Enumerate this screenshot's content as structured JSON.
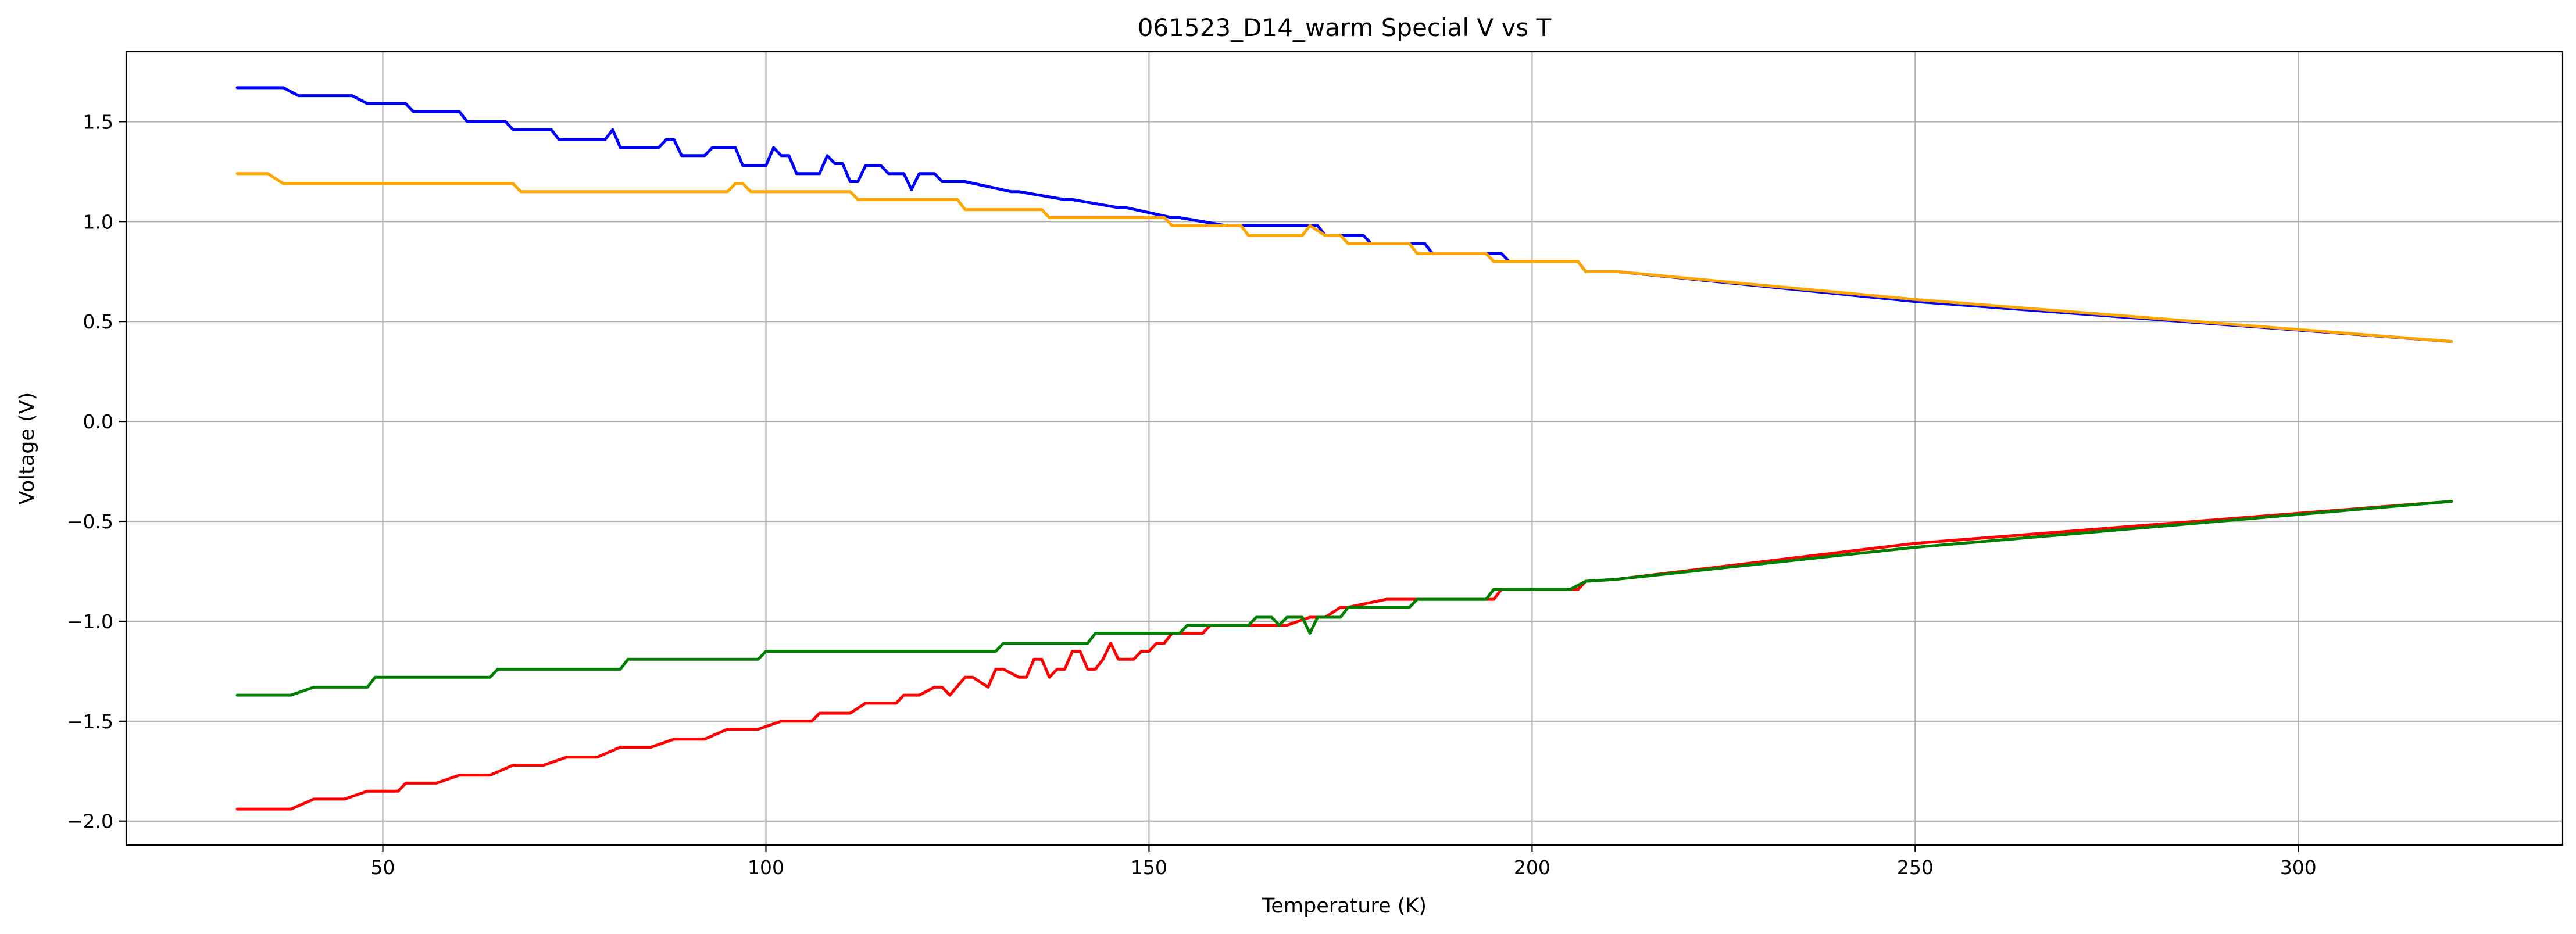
{
  "chart_data": {
    "type": "line",
    "title": "061523_D14_warm Special V vs T",
    "xlabel": "Temperature (K)",
    "ylabel": "Voltage (V)",
    "xlim": [
      16.5,
      334.5
    ],
    "ylim": [
      -2.12,
      1.85
    ],
    "xticks": [
      50,
      100,
      150,
      200,
      250,
      300
    ],
    "yticks": [
      -2.0,
      -1.5,
      -1.0,
      -0.5,
      0.0,
      0.5,
      1.0,
      1.5
    ],
    "xtick_labels": [
      "50",
      "100",
      "150",
      "200",
      "250",
      "300"
    ],
    "ytick_labels": [
      "−2.0",
      "−1.5",
      "−1.0",
      "−0.5",
      "0.0",
      "0.5",
      "1.0",
      "1.5"
    ],
    "grid": true,
    "legend": "none",
    "series": [
      {
        "color": "#0000ff",
        "x": [
          31,
          35,
          37,
          39,
          46,
          48,
          53,
          54,
          60,
          61,
          66,
          67,
          72,
          73,
          79,
          80,
          81,
          86,
          87,
          88,
          89,
          92,
          93,
          96,
          97,
          100,
          101,
          102,
          103,
          104,
          107,
          108,
          109,
          110,
          111,
          112,
          113,
          114,
          115,
          116,
          118,
          119,
          120,
          121,
          122,
          123,
          124,
          126,
          132,
          133,
          139,
          140,
          146,
          147,
          153,
          154,
          160,
          161,
          167,
          168,
          172,
          173,
          174,
          178,
          179,
          186,
          187,
          189,
          195,
          196,
          197,
          206,
          207,
          211,
          250,
          320
        ],
        "y": [
          1.67,
          1.67,
          1.67,
          1.63,
          1.63,
          1.59,
          1.59,
          1.55,
          1.55,
          1.5,
          1.5,
          1.46,
          1.46,
          1.41,
          1.41,
          1.46,
          1.37,
          1.37,
          1.41,
          1.41,
          1.33,
          1.33,
          1.37,
          1.37,
          1.28,
          1.28,
          1.37,
          1.33,
          1.33,
          1.24,
          1.24,
          1.33,
          1.29,
          1.29,
          1.2,
          1.2,
          1.28,
          1.28,
          1.28,
          1.24,
          1.24,
          1.16,
          1.24,
          1.24,
          1.24,
          1.2,
          1.2,
          1.2,
          1.15,
          1.15,
          1.11,
          1.11,
          1.07,
          1.07,
          1.02,
          1.02,
          0.98,
          0.98,
          0.98,
          0.98,
          0.98,
          0.93,
          0.93,
          0.93,
          0.89,
          0.89,
          0.84,
          0.84,
          0.84,
          0.84,
          0.8,
          0.8,
          0.75,
          0.75,
          0.6,
          0.4
        ]
      },
      {
        "color": "#ffa500",
        "x": [
          31,
          35,
          37,
          67,
          68,
          95,
          96,
          97,
          98,
          99,
          111,
          112,
          125,
          126,
          136,
          137,
          152,
          153,
          162,
          163,
          170,
          171,
          173,
          175,
          176,
          184,
          185,
          194,
          195,
          206,
          207,
          211,
          250,
          320
        ],
        "y": [
          1.24,
          1.24,
          1.19,
          1.19,
          1.15,
          1.15,
          1.19,
          1.19,
          1.15,
          1.15,
          1.15,
          1.11,
          1.11,
          1.06,
          1.06,
          1.02,
          1.02,
          0.98,
          0.98,
          0.93,
          0.93,
          0.98,
          0.93,
          0.93,
          0.89,
          0.89,
          0.84,
          0.84,
          0.8,
          0.8,
          0.75,
          0.75,
          0.61,
          0.4
        ]
      },
      {
        "color": "#ff0000",
        "x": [
          31,
          38,
          41,
          45,
          48,
          52,
          53,
          57,
          60,
          64,
          67,
          71,
          74,
          78,
          81,
          85,
          88,
          92,
          95,
          99,
          102,
          106,
          107,
          111,
          113,
          117,
          118,
          120,
          122,
          123,
          124,
          126,
          127,
          129,
          130,
          131,
          133,
          134,
          135,
          136,
          137,
          138,
          139,
          140,
          141,
          142,
          143,
          144,
          145,
          146,
          147,
          148,
          149,
          150,
          151,
          152,
          153,
          157,
          158,
          161,
          162,
          168,
          171,
          172,
          173,
          175,
          176,
          181,
          182,
          186,
          187,
          195,
          196,
          197,
          198,
          206,
          207,
          211,
          250,
          320
        ],
        "y": [
          -1.94,
          -1.94,
          -1.89,
          -1.89,
          -1.85,
          -1.85,
          -1.81,
          -1.81,
          -1.77,
          -1.77,
          -1.72,
          -1.72,
          -1.68,
          -1.68,
          -1.63,
          -1.63,
          -1.59,
          -1.59,
          -1.54,
          -1.54,
          -1.5,
          -1.5,
          -1.46,
          -1.46,
          -1.41,
          -1.41,
          -1.37,
          -1.37,
          -1.33,
          -1.33,
          -1.37,
          -1.28,
          -1.28,
          -1.33,
          -1.24,
          -1.24,
          -1.28,
          -1.28,
          -1.19,
          -1.19,
          -1.28,
          -1.24,
          -1.24,
          -1.15,
          -1.15,
          -1.24,
          -1.24,
          -1.19,
          -1.11,
          -1.19,
          -1.19,
          -1.19,
          -1.15,
          -1.15,
          -1.11,
          -1.11,
          -1.06,
          -1.06,
          -1.02,
          -1.02,
          -1.02,
          -1.02,
          -0.98,
          -0.98,
          -0.98,
          -0.93,
          -0.93,
          -0.89,
          -0.89,
          -0.89,
          -0.89,
          -0.89,
          -0.84,
          -0.84,
          -0.84,
          -0.84,
          -0.8,
          -0.79,
          -0.61,
          -0.4
        ]
      },
      {
        "color": "#008000",
        "x": [
          31,
          38,
          41,
          48,
          49,
          64,
          65,
          81,
          82,
          99,
          100,
          130,
          131,
          142,
          143,
          154,
          155,
          163,
          164,
          166,
          167,
          168,
          170,
          171,
          172,
          175,
          176,
          184,
          185,
          194,
          195,
          205,
          207,
          211,
          250,
          320
        ],
        "y": [
          -1.37,
          -1.37,
          -1.33,
          -1.33,
          -1.28,
          -1.28,
          -1.24,
          -1.24,
          -1.19,
          -1.19,
          -1.15,
          -1.15,
          -1.11,
          -1.11,
          -1.06,
          -1.06,
          -1.02,
          -1.02,
          -0.98,
          -0.98,
          -1.02,
          -0.98,
          -0.98,
          -1.06,
          -0.98,
          -0.98,
          -0.93,
          -0.93,
          -0.89,
          -0.89,
          -0.84,
          -0.84,
          -0.8,
          -0.79,
          -0.63,
          -0.4
        ]
      }
    ]
  }
}
